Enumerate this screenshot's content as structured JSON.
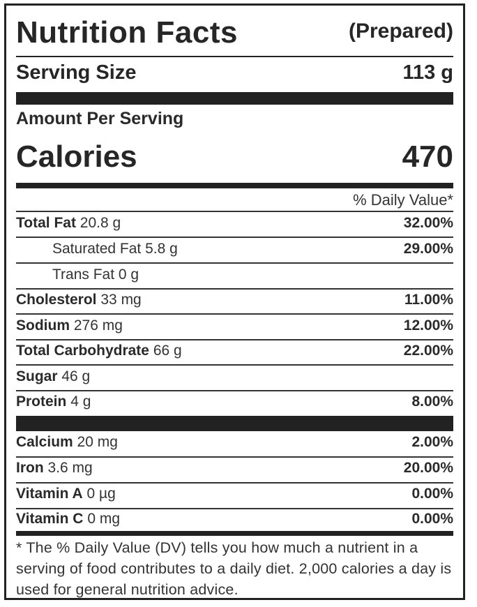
{
  "header": {
    "title": "Nutrition Facts",
    "subtitle": "(Prepared)"
  },
  "serving": {
    "label": "Serving Size",
    "value": "113 g"
  },
  "amount_per_serving": "Amount Per Serving",
  "calories": {
    "label": "Calories",
    "value": "470"
  },
  "daily_value_header": "% Daily Value*",
  "nutrients": [
    {
      "name": "Total Fat",
      "amount": "20.8 g",
      "percent": "32.00%",
      "indent": false
    },
    {
      "name": "Saturated Fat",
      "amount": "5.8 g",
      "percent": "29.00%",
      "indent": true,
      "plain": true
    },
    {
      "name": "Trans Fat",
      "amount": "0 g",
      "percent": "",
      "indent": true,
      "plain": true
    },
    {
      "name": "Cholesterol",
      "amount": "33 mg",
      "percent": "11.00%",
      "indent": false
    },
    {
      "name": "Sodium",
      "amount": "276 mg",
      "percent": "12.00%",
      "indent": false
    },
    {
      "name": "Total Carbohydrate",
      "amount": "66 g",
      "percent": "22.00%",
      "indent": false
    },
    {
      "name": "Sugar",
      "amount": "46 g",
      "percent": "",
      "indent": false
    },
    {
      "name": "Protein",
      "amount": "4 g",
      "percent": "8.00%",
      "indent": false
    }
  ],
  "minerals": [
    {
      "name": "Calcium",
      "amount": "20 mg",
      "percent": "2.00%"
    },
    {
      "name": "Iron",
      "amount": "3.6 mg",
      "percent": "20.00%"
    },
    {
      "name": "Vitamin A",
      "amount": "0 µg",
      "percent": "0.00%"
    },
    {
      "name": "Vitamin C",
      "amount": "0 mg",
      "percent": "0.00%"
    }
  ],
  "footnote": "* The % Daily Value (DV) tells you how much a nutrient in a serving of food contributes to a daily diet. 2,000 calories a day is used for general nutrition advice."
}
